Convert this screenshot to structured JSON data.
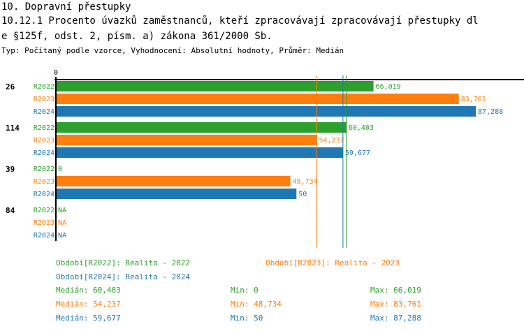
{
  "title": "10. Dopravní přestupky",
  "subtitle_line1": "10.12.1 Procento úvazků zaměstnanců, kteří zpracovávají zpracovávají přestupky dl",
  "subtitle_line2": "e §125f, odst. 2, písm. a) zákona 361/2000 Sb.",
  "info": "Typ: Počítaný podle vzorce, Vyhodnocení: Absolutní hodnoty, Průměr: Medián",
  "colors": {
    "R2022": "#2ca02c",
    "R2023": "#ff7f0e",
    "R2024": "#1f77b4"
  },
  "chart_data": {
    "type": "bar",
    "orientation": "horizontal",
    "xlim": [
      0,
      87.288
    ],
    "x_tick_labels": [
      "0"
    ],
    "categories": [
      "26",
      "114",
      "39",
      "84"
    ],
    "series": [
      {
        "name": "R2022",
        "values": [
          66.019,
          60.403,
          0,
          null
        ],
        "labels": [
          "66,019",
          "60,403",
          "0",
          "NA"
        ]
      },
      {
        "name": "R2023",
        "values": [
          83.761,
          54.237,
          48.734,
          null
        ],
        "labels": [
          "83,761",
          "54,237",
          "48,734",
          "NA"
        ]
      },
      {
        "name": "R2024",
        "values": [
          87.288,
          59.677,
          50,
          null
        ],
        "labels": [
          "87,288",
          "59,677",
          "50",
          "NA"
        ]
      }
    ],
    "median_lines": [
      {
        "series": "R2022",
        "value": 60.403
      },
      {
        "series": "R2023",
        "value": 54.237
      },
      {
        "series": "R2024",
        "value": 59.677
      }
    ]
  },
  "legend": [
    {
      "series": "R2022",
      "text": "Období[R2022]: Realita - 2022"
    },
    {
      "series": "R2023",
      "text": "Období[R2023]: Realita - 2023"
    },
    {
      "series": "R2024",
      "text": "Období[R2024]: Realita - 2024"
    }
  ],
  "stats": [
    {
      "series": "R2022",
      "median": "Medián: 60,403",
      "min": "Min: 0",
      "max": "Max: 66,019"
    },
    {
      "series": "R2023",
      "median": "Medián: 54,237",
      "min": "Min: 48,734",
      "max": "Max: 83,761"
    },
    {
      "series": "R2024",
      "median": "Medián: 59,677",
      "min": "Min: 50",
      "max": "Max: 87,288"
    }
  ]
}
